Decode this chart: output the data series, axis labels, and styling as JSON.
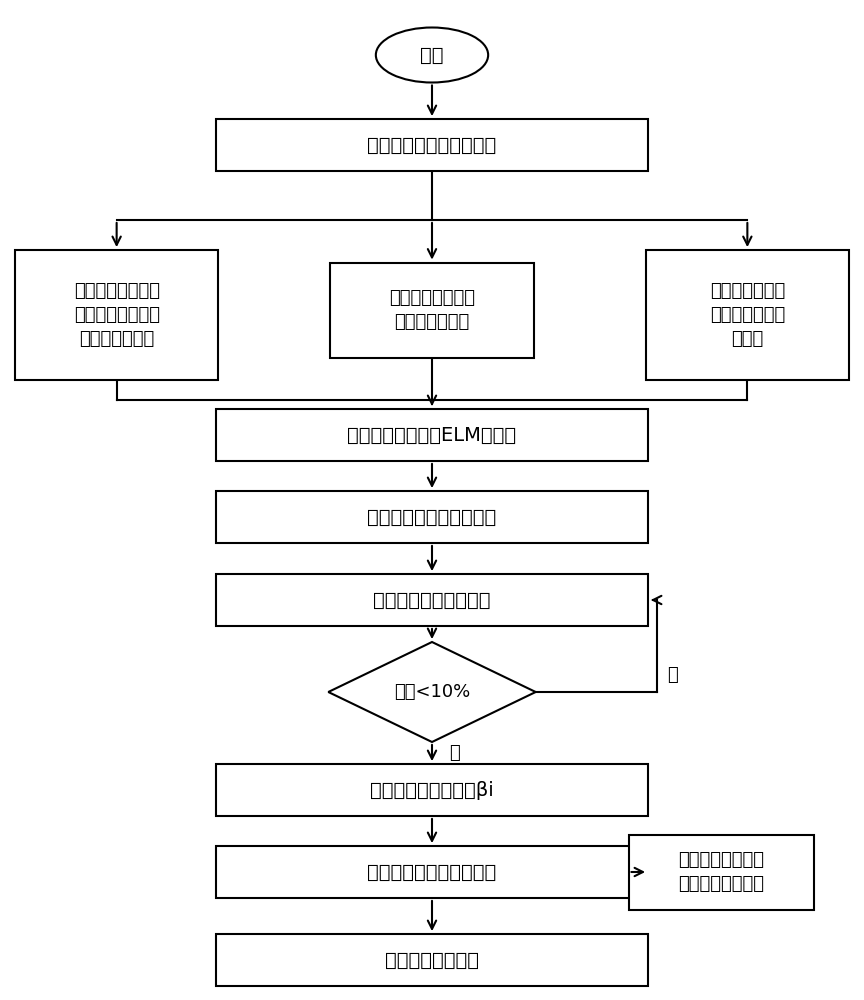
{
  "bg_color": "#ffffff",
  "border_color": "#000000",
  "text_color": "#000000",
  "start_text": "开始",
  "detect_text": "终端检测到零序电压越界",
  "left_text": "通过暂态能量法得\n到各终端暂态能量\n值比（含极性）",
  "mid_text": "通过小波法得到各\n终端小波幅值比",
  "right_text": "通过首半波法得\n到各终端首半波\n幅值比",
  "elm_build_text": "构建极限学习机（ELM）网络",
  "elm_train_text": "利用极限学习机训练网络",
  "calc_err_text": "计算训练样本输出误差",
  "decision_text": "误差<10%",
  "save_text": "保存网络的输出权重βi",
  "train_done_text": "极限学习机网络训练完成",
  "field_text": "现场实际故障情况\n作为测试样本输入",
  "result_text": "得出区段定位结果",
  "yes_text": "是",
  "no_text": "否",
  "lw": 1.5,
  "fs_main": 14,
  "fs_small": 13
}
